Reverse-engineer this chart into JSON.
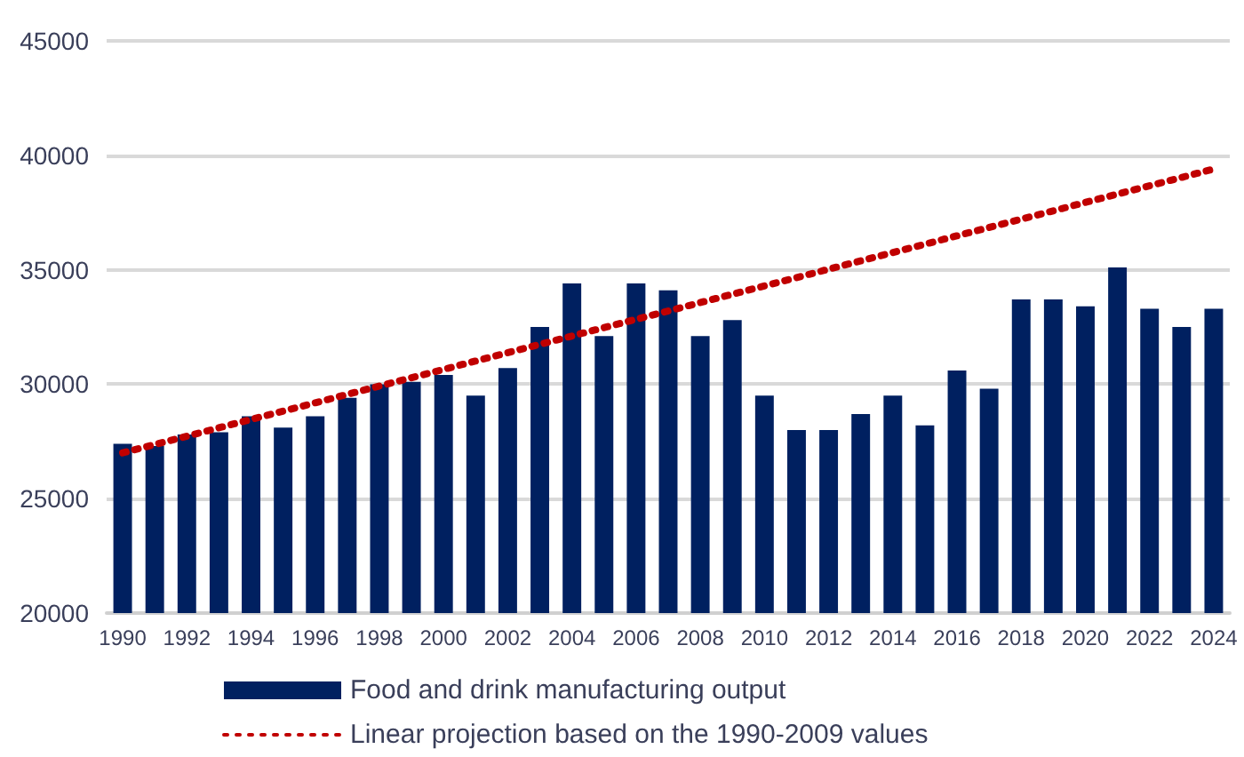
{
  "chart_data": {
    "type": "bar",
    "categories": [
      "1990",
      null,
      "1992",
      null,
      "1994",
      null,
      "1996",
      null,
      "1998",
      null,
      "2000",
      null,
      "2002",
      null,
      "2004",
      null,
      "2006",
      null,
      "2008",
      null,
      "2010",
      null,
      "2012",
      null,
      "2014",
      null,
      "2016",
      null,
      "2018",
      null,
      "2020",
      null,
      "2022",
      null,
      "2024"
    ],
    "series": [
      {
        "name": "Food and drink manufacturing output",
        "color": "#002060",
        "values": [
          27400,
          27300,
          27800,
          27900,
          28600,
          28100,
          28600,
          29400,
          30000,
          30100,
          30400,
          29500,
          30700,
          32500,
          34400,
          32100,
          34400,
          34100,
          32100,
          32800,
          29500,
          28000,
          28000,
          28700,
          29500,
          28200,
          30600,
          29800,
          33700,
          33700,
          33400,
          35100,
          33300,
          32500,
          33300
        ]
      },
      {
        "name": "Linear projection based on the 1990-2009 values",
        "type": "line",
        "color": "#c00000",
        "line_style": "dotted",
        "marker": "none",
        "values": [
          27000,
          null,
          null,
          null,
          null,
          null,
          null,
          null,
          null,
          null,
          null,
          null,
          null,
          null,
          null,
          null,
          null,
          null,
          null,
          null,
          null,
          null,
          null,
          null,
          null,
          null,
          null,
          null,
          null,
          null,
          null,
          null,
          null,
          null,
          39400
        ]
      }
    ],
    "ylim": [
      20000,
      45000
    ],
    "yticks": [
      20000,
      25000,
      30000,
      35000,
      40000,
      45000
    ],
    "grid": "y",
    "legend": "bottom"
  }
}
